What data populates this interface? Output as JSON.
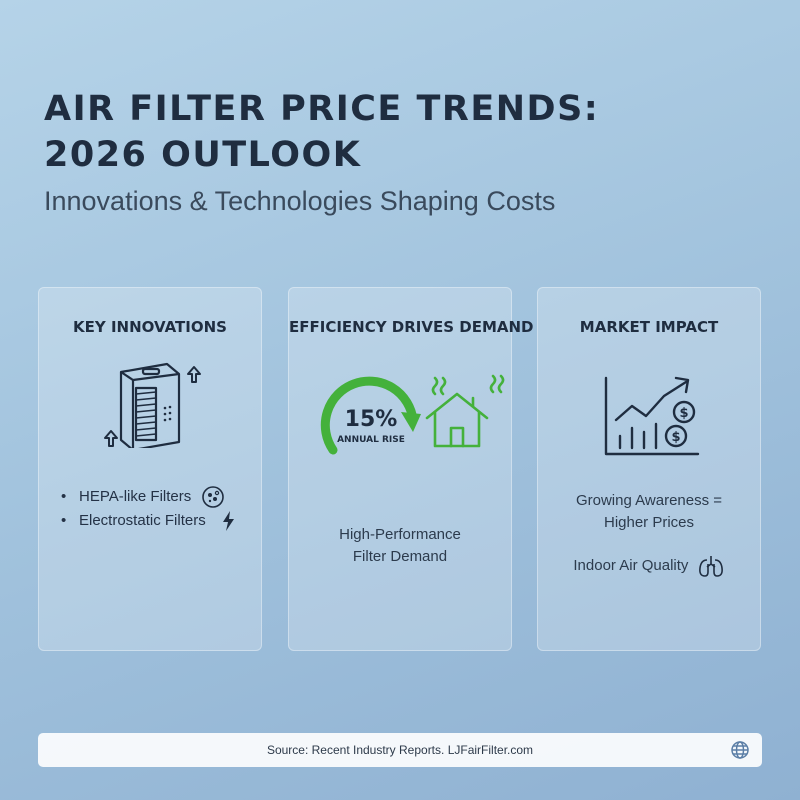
{
  "header": {
    "title": "AIR FILTER PRICE TRENDS: 2026 OUTLOOK",
    "subtitle": "Innovations & Technologies Shaping Costs"
  },
  "cards": [
    {
      "title": "KEY INNOVATIONS",
      "icon": "air-purifier-icon",
      "items": [
        {
          "label": "HEPA-like Filters",
          "icon": "particles-icon"
        },
        {
          "label": "Electrostatic Filters",
          "icon": "lightning-icon"
        }
      ]
    },
    {
      "title": "EFFICIENCY DRIVES DEMAND",
      "stat_value": "15%",
      "stat_label": "ANNUAL RISE",
      "icon": "house-air-icon",
      "text_lines": [
        "High-Performance",
        "Filter Demand"
      ]
    },
    {
      "title": "MARKET IMPACT",
      "icon": "growth-chart-icon",
      "text_lines": [
        "Growing Awareness =",
        "Higher Prices"
      ],
      "extra_label": "Indoor Air Quality",
      "extra_icon": "lungs-icon"
    }
  ],
  "footer": {
    "source": "Source: Recent Industry Reports. LJFairFilter.com",
    "icon": "globe-icon"
  },
  "colors": {
    "accent_green": "#44b13b",
    "title_dark": "#1f2d40"
  }
}
